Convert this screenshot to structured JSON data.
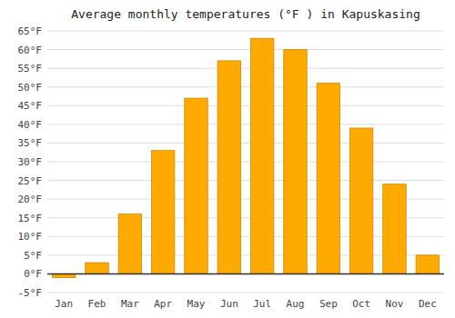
{
  "chart_data": {
    "type": "bar",
    "title": "Average monthly temperatures (°F ) in Kapuskasing",
    "categories": [
      "Jan",
      "Feb",
      "Mar",
      "Apr",
      "May",
      "Jun",
      "Jul",
      "Aug",
      "Sep",
      "Oct",
      "Nov",
      "Dec"
    ],
    "values": [
      -1,
      3,
      16,
      33,
      47,
      57,
      63,
      60,
      51,
      39,
      24,
      5
    ],
    "color": "#FFAA00",
    "ylim": [
      -5,
      65
    ],
    "yticks": [
      {
        "value": -5,
        "label": "-5°F"
      },
      {
        "value": 0,
        "label": "0°F"
      },
      {
        "value": 5,
        "label": "5°F"
      },
      {
        "value": 10,
        "label": "10°F"
      },
      {
        "value": 15,
        "label": "15°F"
      },
      {
        "value": 20,
        "label": "20°F"
      },
      {
        "value": 25,
        "label": "25°F"
      },
      {
        "value": 30,
        "label": "30°F"
      },
      {
        "value": 35,
        "label": "35°F"
      },
      {
        "value": 40,
        "label": "40°F"
      },
      {
        "value": 45,
        "label": "45°F"
      },
      {
        "value": 50,
        "label": "50°F"
      },
      {
        "value": 55,
        "label": "55°F"
      },
      {
        "value": 60,
        "label": "60°F"
      },
      {
        "value": 65,
        "label": "65°F"
      }
    ],
    "grid": true
  }
}
